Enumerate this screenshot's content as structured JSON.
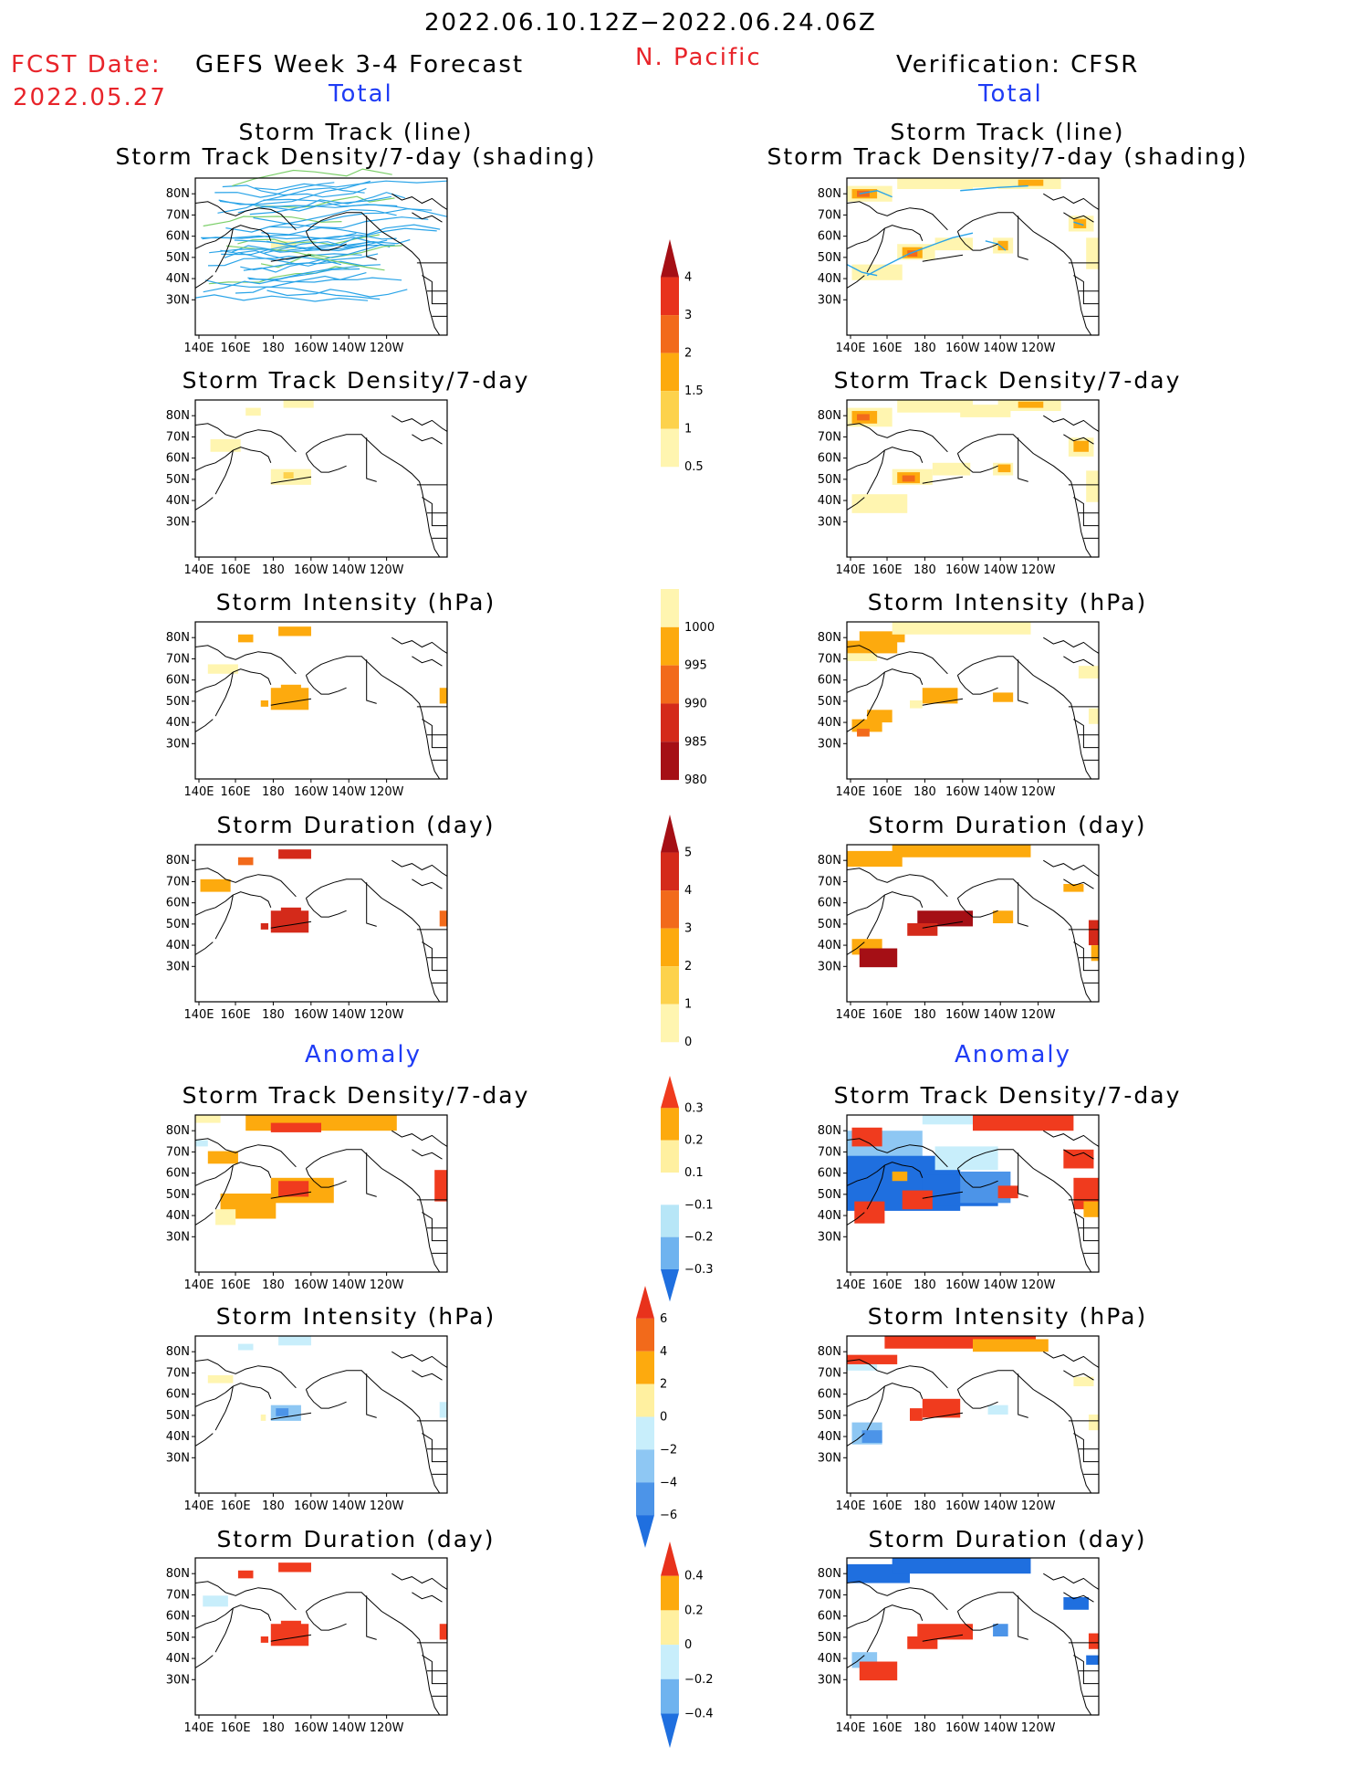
{
  "header": {
    "date_range": "2022.06.10.12Z−2022.06.24.06Z",
    "region": "N. Pacific",
    "fcst_label": "FCST Date:",
    "fcst_date": "2022.05.27",
    "left_title": "GEFS Week 3-4 Forecast",
    "right_title": "Verification: CFSR",
    "total_label": "Total",
    "anomaly_label": "Anomaly"
  },
  "axes": {
    "x_ticks": [
      "140E",
      "160E",
      "180",
      "160W",
      "140W",
      "120W"
    ],
    "y_ticks": [
      "80N",
      "70N",
      "60N",
      "50N",
      "40N",
      "30N"
    ]
  },
  "panel_titles": {
    "track_line": "Storm Track (line)",
    "track_shading": "Storm Track Density/7-day (shading)",
    "density": "Storm Track Density/7-day",
    "intensity": "Storm Intensity (hPa)",
    "duration": "Storm Duration (day)"
  },
  "colorbars": [
    {
      "id": "density_total",
      "labels": [
        "4",
        "3",
        "2",
        "1.5",
        "1",
        "0.5"
      ],
      "colors": [
        "#a50f15",
        "#e8321c",
        "#f26a1b",
        "#fdaa0e",
        "#fdd24c",
        "#fff5b0"
      ]
    },
    {
      "id": "intensity_total",
      "labels": [
        "1000",
        "995",
        "990",
        "985",
        "980"
      ],
      "colors": [
        "#fff5b0",
        "#fdaa0e",
        "#f26a1b",
        "#d42a1a",
        "#a50f15"
      ]
    },
    {
      "id": "duration_total",
      "labels": [
        "5",
        "4",
        "3",
        "2",
        "1",
        "0"
      ],
      "colors": [
        "#a50f15",
        "#d42a1a",
        "#f26a1b",
        "#fdaa0e",
        "#fdd24c",
        "#fff5b0"
      ]
    },
    {
      "id": "density_anom",
      "labels": [
        "0.3",
        "0.2",
        "0.1",
        "−0.1",
        "−0.2",
        "−0.3"
      ],
      "colors": [
        "#f03b1e",
        "#fdaa0e",
        "#fff0a0",
        "#ffffff",
        "#b7e6f7",
        "#6fb3ef",
        "#1f6fdf"
      ]
    },
    {
      "id": "intensity_anom",
      "labels": [
        "6",
        "4",
        "2",
        "0",
        "−2",
        "−4",
        "−6"
      ],
      "colors": [
        "#e8321c",
        "#f26a1b",
        "#fdaa0e",
        "#fff0a0",
        "#c8eefb",
        "#8ec7f3",
        "#4c94e8",
        "#1f6fdf"
      ]
    },
    {
      "id": "duration_anom",
      "labels": [
        "0.4",
        "0.2",
        "0",
        "−0.2",
        "−0.4"
      ],
      "colors": [
        "#e8321c",
        "#fdaa0e",
        "#fff0a0",
        "#c8eefb",
        "#6fb3ef",
        "#1f6fdf"
      ]
    }
  ]
}
